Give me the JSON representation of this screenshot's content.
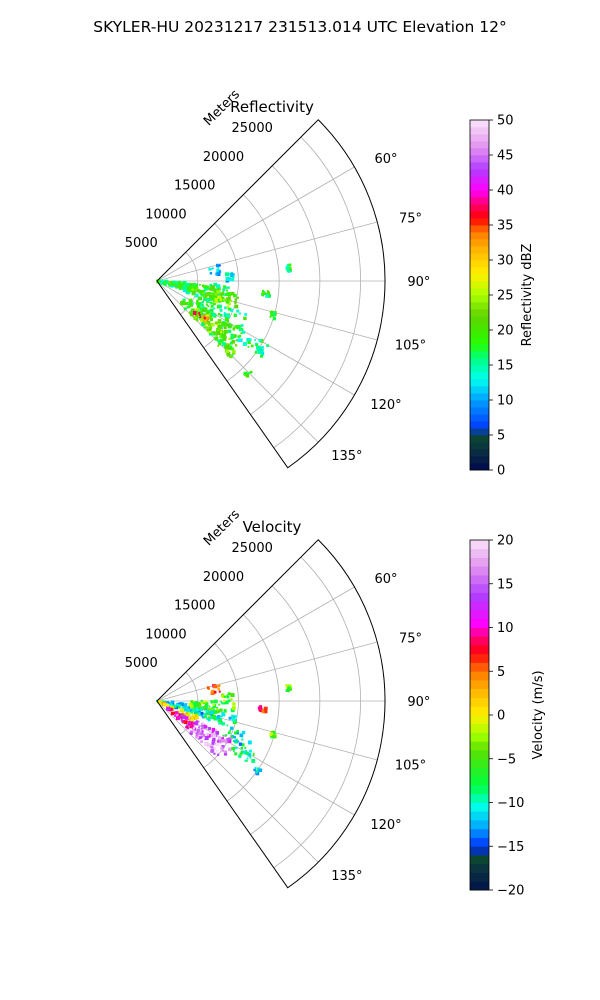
{
  "suptitle": "SKYLER-HU  20231217  231513.014 UTC Elevation 12°",
  "chart_data": [
    {
      "type": "heatmap",
      "title": "Reflectivity",
      "projection": "polar sector",
      "r_label": "Meters",
      "r_ticks": [
        5000,
        10000,
        15000,
        20000,
        25000
      ],
      "r_tick_labels": [
        "5000",
        "10000",
        "15000",
        "20000",
        "25000"
      ],
      "rmax": 28000,
      "theta_range_deg": [
        45,
        145
      ],
      "theta_ticks": [
        60,
        75,
        90,
        105,
        120,
        135
      ],
      "theta_tick_labels": [
        "60°",
        "75°",
        "90°",
        "105°",
        "120°",
        "135°"
      ],
      "colorbar": {
        "label": "Reflectivity dBZ",
        "vmin": 0,
        "vmax": 50,
        "ticks": [
          0,
          5,
          10,
          15,
          20,
          25,
          30,
          35,
          40,
          45,
          50
        ],
        "tick_labels": [
          "0",
          "5",
          "10",
          "15",
          "20",
          "25",
          "30",
          "35",
          "40",
          "45",
          "50"
        ]
      },
      "echoes": [
        {
          "theta": [
            93,
            112
          ],
          "r": [
            0,
            8500
          ],
          "value": 16
        },
        {
          "theta": [
            95,
            104
          ],
          "r": [
            1500,
            9500
          ],
          "value": 19
        },
        {
          "theta": [
            100,
            108
          ],
          "r": [
            4000,
            10500
          ],
          "value": 21
        },
        {
          "theta": [
            104,
            110
          ],
          "r": [
            6000,
            9500
          ],
          "value": 23
        },
        {
          "theta": [
            110,
            122
          ],
          "r": [
            5500,
            12000
          ],
          "value": 17
        },
        {
          "theta": [
            120,
            135
          ],
          "r": [
            4000,
            12500
          ],
          "value": 19
        },
        {
          "theta": [
            124,
            134
          ],
          "r": [
            5500,
            10000
          ],
          "value": 24
        },
        {
          "theta": [
            126,
            131
          ],
          "r": [
            6000,
            8000
          ],
          "value": 34
        },
        {
          "theta": [
            128,
            138
          ],
          "r": [
            9500,
            13000
          ],
          "value": 21
        },
        {
          "theta": [
            119,
            126
          ],
          "r": [
            12000,
            16000
          ],
          "value": 16
        },
        {
          "theta": [
            75,
            84
          ],
          "r": [
            6500,
            8000
          ],
          "value": 10
        },
        {
          "theta": [
            84,
            90
          ],
          "r": [
            8500,
            9500
          ],
          "value": 12
        },
        {
          "theta": [
            123,
            126
          ],
          "r": [
            14500,
            15500
          ],
          "value": 15
        },
        {
          "theta": [
            134,
            137
          ],
          "r": [
            15500,
            16200
          ],
          "value": 17
        },
        {
          "theta": [
            95,
            98
          ],
          "r": [
            13000,
            14000
          ],
          "value": 18
        },
        {
          "theta": [
            83,
            86
          ],
          "r": [
            16000,
            16500
          ],
          "value": 16
        },
        {
          "theta": [
            105,
            108
          ],
          "r": [
            14500,
            15200
          ],
          "value": 18
        }
      ]
    },
    {
      "type": "heatmap",
      "title": "Velocity",
      "projection": "polar sector",
      "r_label": "Meters",
      "r_ticks": [
        5000,
        10000,
        15000,
        20000,
        25000
      ],
      "r_tick_labels": [
        "5000",
        "10000",
        "15000",
        "20000",
        "25000"
      ],
      "rmax": 28000,
      "theta_range_deg": [
        45,
        145
      ],
      "theta_ticks": [
        60,
        75,
        90,
        105,
        120,
        135
      ],
      "theta_tick_labels": [
        "60°",
        "75°",
        "90°",
        "105°",
        "120°",
        "135°"
      ],
      "colorbar": {
        "label": "Velocity (m/s)",
        "vmin": -20,
        "vmax": 20,
        "ticks": [
          -20,
          -15,
          -10,
          -5,
          0,
          5,
          10,
          15,
          20
        ],
        "tick_labels": [
          "−20",
          "−15",
          "−10",
          "−5",
          "0",
          "5",
          "10",
          "15",
          "20"
        ]
      },
      "echoes": [
        {
          "theta": [
            95,
            110
          ],
          "r": [
            0,
            7000
          ],
          "value": -11
        },
        {
          "theta": [
            110,
            120
          ],
          "r": [
            0,
            5500
          ],
          "value": 2
        },
        {
          "theta": [
            120,
            132
          ],
          "r": [
            1500,
            5500
          ],
          "value": 10
        },
        {
          "theta": [
            90,
            100
          ],
          "r": [
            4000,
            9500
          ],
          "value": -5
        },
        {
          "theta": [
            100,
            110
          ],
          "r": [
            6000,
            10000
          ],
          "value": -9
        },
        {
          "theta": [
            116,
            128
          ],
          "r": [
            5500,
            11000
          ],
          "value": 15
        },
        {
          "theta": [
            124,
            134
          ],
          "r": [
            5500,
            10000
          ],
          "value": 17
        },
        {
          "theta": [
            110,
            118
          ],
          "r": [
            9000,
            12500
          ],
          "value": -10
        },
        {
          "theta": [
            118,
            124
          ],
          "r": [
            11000,
            15000
          ],
          "value": -8
        },
        {
          "theta": [
            75,
            84
          ],
          "r": [
            6500,
            8000
          ],
          "value": 6
        },
        {
          "theta": [
            84,
            90
          ],
          "r": [
            8000,
            9500
          ],
          "value": -4
        },
        {
          "theta": [
            93,
            96
          ],
          "r": [
            12500,
            13500
          ],
          "value": 8
        },
        {
          "theta": [
            123,
            126
          ],
          "r": [
            14500,
            15500
          ],
          "value": -12
        },
        {
          "theta": [
            105,
            108
          ],
          "r": [
            14500,
            15200
          ],
          "value": -4
        },
        {
          "theta": [
            83,
            86
          ],
          "r": [
            16000,
            16500
          ],
          "value": -5
        }
      ]
    }
  ]
}
